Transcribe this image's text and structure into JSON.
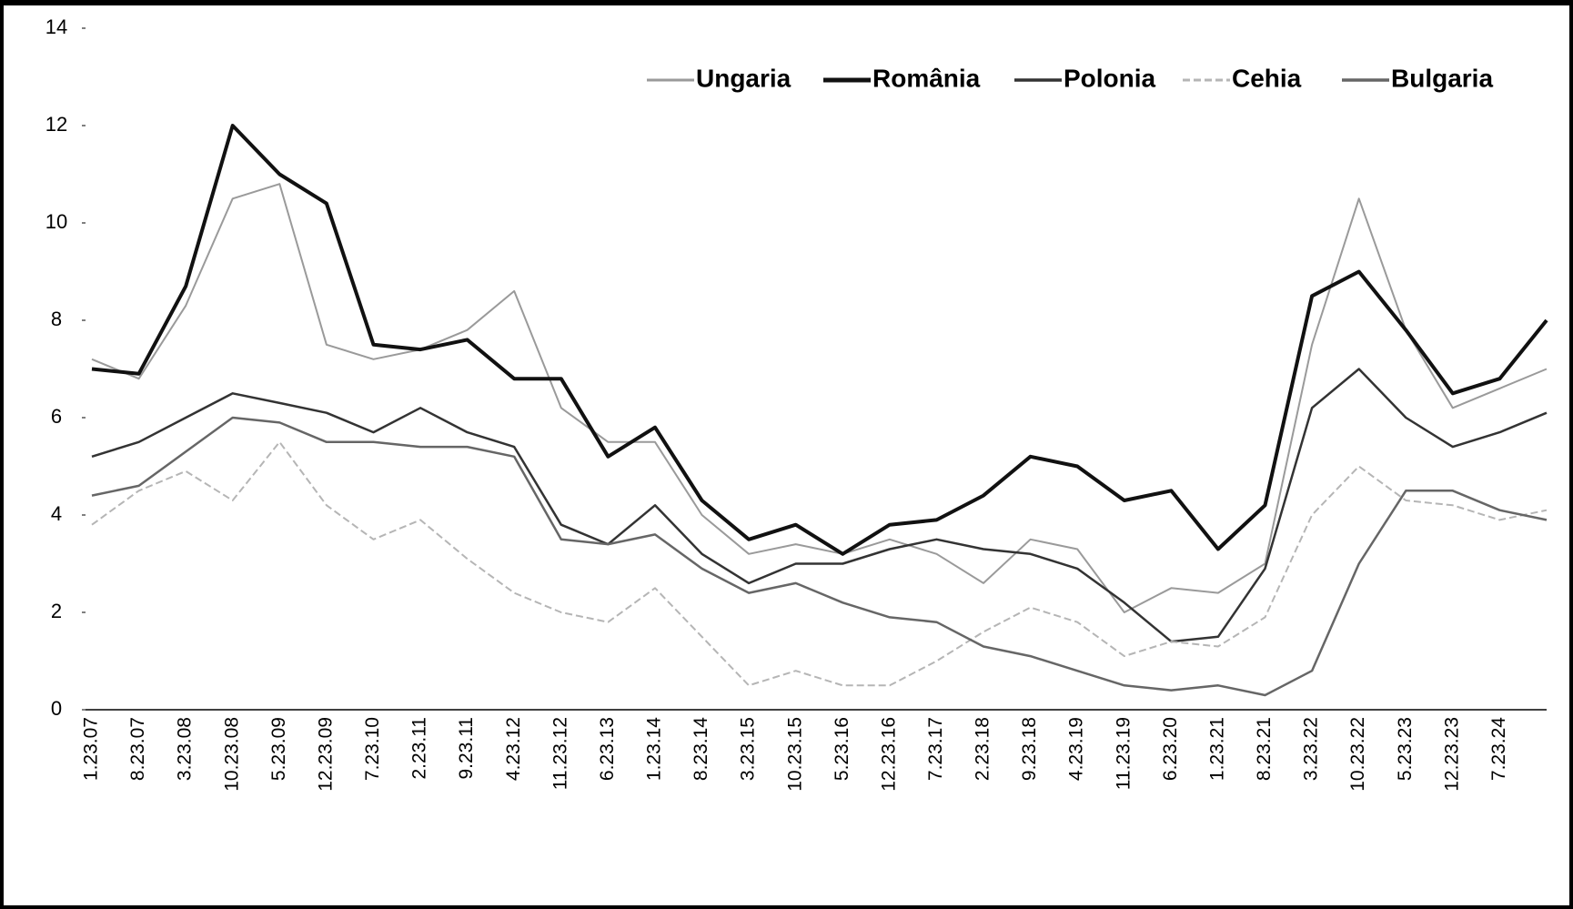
{
  "chart_data": {
    "type": "line",
    "categories": [
      "1.23.07",
      "8.23.07",
      "3.23.08",
      "10.23.08",
      "5.23.09",
      "12.23.09",
      "7.23.10",
      "2.23.11",
      "9.23.11",
      "4.23.12",
      "11.23.12",
      "6.23.13",
      "1.23.14",
      "8.23.14",
      "3.23.15",
      "10.23.15",
      "5.23.16",
      "12.23.16",
      "7.23.17",
      "2.23.18",
      "9.23.18",
      "4.23.19",
      "11.23.19",
      "6.23.20",
      "1.23.21",
      "8.23.21",
      "3.23.22",
      "10.23.22",
      "5.23.23",
      "12.23.23",
      "7.23.24",
      null
    ],
    "series": [
      {
        "name": "Ungaria",
        "color": "#9a9a9a",
        "line_width": 2,
        "values": [
          7.2,
          6.8,
          8.3,
          10.5,
          10.8,
          7.5,
          7.2,
          7.4,
          7.8,
          8.6,
          6.2,
          5.5,
          5.5,
          4.0,
          3.2,
          3.4,
          3.2,
          3.5,
          3.2,
          2.6,
          3.5,
          3.3,
          2.0,
          2.5,
          2.4,
          3.0,
          7.5,
          10.5,
          7.8,
          6.2,
          6.6,
          7.0
        ]
      },
      {
        "name": "România",
        "color": "#111111",
        "line_width": 4,
        "values": [
          7.0,
          6.9,
          8.7,
          12.0,
          11.0,
          10.4,
          7.5,
          7.4,
          7.6,
          6.8,
          6.8,
          5.2,
          5.8,
          4.3,
          3.5,
          3.8,
          3.2,
          3.8,
          3.9,
          4.4,
          5.2,
          5.0,
          4.3,
          4.5,
          3.3,
          4.2,
          8.5,
          9.0,
          7.8,
          6.5,
          6.8,
          8.0
        ]
      },
      {
        "name": "Polonia",
        "color": "#333333",
        "line_width": 2.5,
        "values": [
          5.2,
          5.5,
          6.0,
          6.5,
          6.3,
          6.1,
          5.7,
          6.2,
          5.7,
          5.4,
          3.8,
          3.4,
          4.2,
          3.2,
          2.6,
          3.0,
          3.0,
          3.3,
          3.5,
          3.3,
          3.2,
          2.9,
          2.2,
          1.4,
          1.5,
          2.9,
          6.2,
          7.0,
          6.0,
          5.4,
          5.7,
          6.1
        ]
      },
      {
        "name": "Cehia",
        "color": "#b5b5b5",
        "line_width": 2,
        "dashed": true,
        "values": [
          3.8,
          4.5,
          4.9,
          4.3,
          5.5,
          4.2,
          3.5,
          3.9,
          3.1,
          2.4,
          2.0,
          1.8,
          2.5,
          1.5,
          0.5,
          0.8,
          0.5,
          0.5,
          1.0,
          1.6,
          2.1,
          1.8,
          1.1,
          1.4,
          1.3,
          1.9,
          4.0,
          5.0,
          4.3,
          4.2,
          3.9,
          4.1
        ]
      },
      {
        "name": "Bulgaria",
        "color": "#666666",
        "line_width": 2.5,
        "values": [
          4.4,
          4.6,
          5.3,
          6.0,
          5.9,
          5.5,
          5.5,
          5.4,
          5.4,
          5.2,
          3.5,
          3.4,
          3.6,
          2.9,
          2.4,
          2.6,
          2.2,
          1.9,
          1.8,
          1.3,
          1.1,
          0.8,
          0.5,
          0.4,
          0.5,
          0.3,
          0.8,
          3.0,
          4.5,
          4.5,
          4.1,
          3.9
        ]
      }
    ],
    "ylim": [
      0,
      14
    ],
    "yticks": [
      0,
      2,
      4,
      6,
      8,
      10,
      12,
      14
    ],
    "legend": "top-right"
  }
}
